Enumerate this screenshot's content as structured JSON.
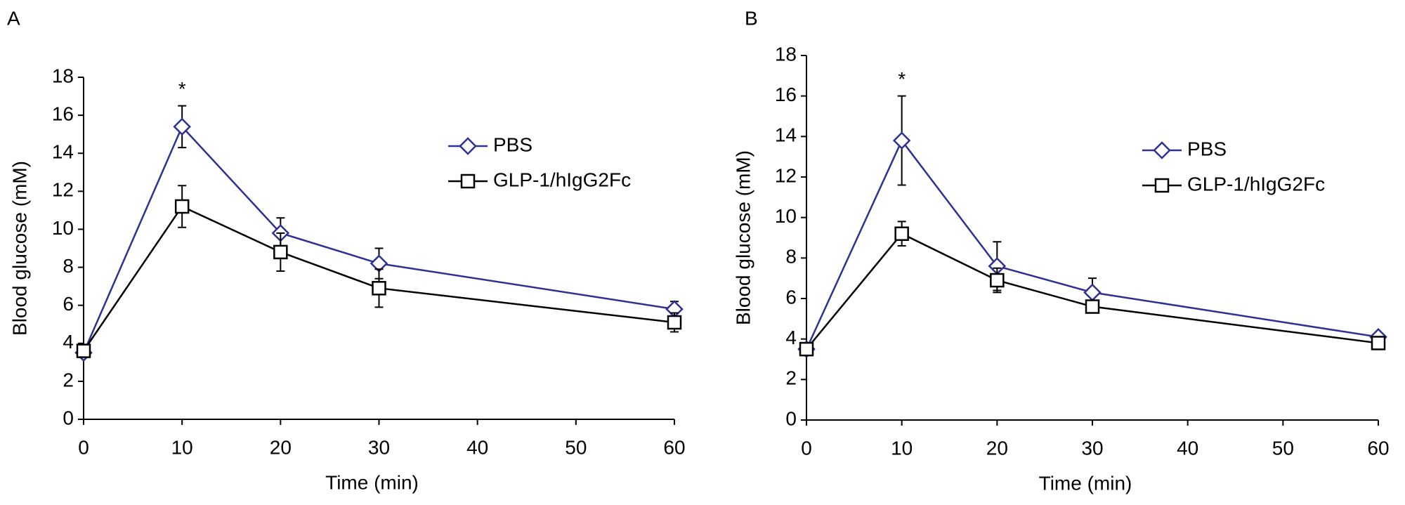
{
  "chart_data": [
    {
      "type": "line",
      "label": "A",
      "x_label": "Time (min)",
      "y_label": "Blood glucose (mM)",
      "xlim": [
        0,
        60
      ],
      "xticks": [
        0,
        10,
        20,
        30,
        40,
        50,
        60
      ],
      "ylim": [
        0,
        18
      ],
      "yticks": [
        0,
        2,
        4,
        6,
        8,
        10,
        12,
        14,
        16,
        18
      ],
      "legend": "upper right",
      "x": [
        0,
        10,
        20,
        30,
        60
      ],
      "series": [
        {
          "name": "PBS",
          "color": "#2e3192",
          "marker": "diamond",
          "values": [
            3.5,
            15.4,
            9.8,
            8.2,
            5.8
          ],
          "errors": [
            0,
            1.1,
            0.8,
            0.8,
            0.4
          ]
        },
        {
          "name": "GLP-1/hIgG2Fc",
          "color": "#000000",
          "marker": "square",
          "values": [
            3.6,
            11.2,
            8.8,
            6.9,
            5.1
          ],
          "errors": [
            0,
            1.1,
            1.0,
            1.0,
            0.5
          ]
        }
      ],
      "annotations": [
        {
          "text": "*",
          "x": 10
        }
      ]
    },
    {
      "type": "line",
      "label": "B",
      "x_label": "Time (min)",
      "y_label": "Blood glucose (mM)",
      "xlim": [
        0,
        60
      ],
      "xticks": [
        0,
        10,
        20,
        30,
        40,
        50,
        60
      ],
      "ylim": [
        0,
        18
      ],
      "yticks": [
        0,
        2,
        4,
        6,
        8,
        10,
        12,
        14,
        16,
        18
      ],
      "legend": "upper right",
      "x": [
        0,
        10,
        20,
        30,
        60
      ],
      "series": [
        {
          "name": "PBS",
          "color": "#2e3192",
          "marker": "diamond",
          "values": [
            3.5,
            13.8,
            7.6,
            6.3,
            4.1
          ],
          "errors": [
            0,
            2.2,
            1.2,
            0.7,
            0.2
          ]
        },
        {
          "name": "GLP-1/hIgG2Fc",
          "color": "#000000",
          "marker": "square",
          "values": [
            3.5,
            9.2,
            6.9,
            5.6,
            3.8
          ],
          "errors": [
            0,
            0.6,
            0.6,
            0.3,
            0.2
          ]
        }
      ],
      "annotations": [
        {
          "text": "*",
          "x": 10
        }
      ]
    }
  ]
}
